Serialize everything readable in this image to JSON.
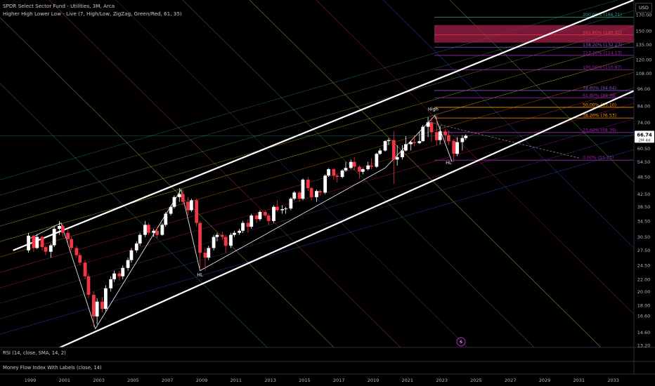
{
  "header": {
    "title": "SPDR Select Sector Fund - Utilities, 3M, Arca",
    "indicator": "Higher High Lower Low - Live (7, High/Low, ZigZag, Green/Red, 61, 35)",
    "currency": "USD"
  },
  "panes": {
    "rsi_label": "RSI (14, close, SMA, 14, 2)",
    "mfi_label": "Money Flow Index With Labels (close, 14)"
  },
  "colors": {
    "bull": "#ffffff",
    "bear": "#f23645",
    "channel": "#ffffff",
    "price_badge_bg": "#ffffff",
    "fib_highlight": "#a3224a"
  },
  "chart_data": {
    "type": "candlestick",
    "title": "SPDR Select Sector Fund - Utilities, 3M, Arca",
    "x_ticks": [
      "1999",
      "2001",
      "2003",
      "2005",
      "2007",
      "2009",
      "2011",
      "2013",
      "2015",
      "2017",
      "2019",
      "2021",
      "2023",
      "2025",
      "2027",
      "2029",
      "2031",
      "2033"
    ],
    "y_ticks": [
      "170.00",
      "150.00",
      "135.00",
      "120.00",
      "108.00",
      "96.00",
      "84.00",
      "74.00",
      "66.74",
      "60.50",
      "54.50",
      "48.50",
      "42.50",
      "38.50",
      "34.50",
      "30.50",
      "27.50",
      "24.50",
      "22.00",
      "20.00",
      "18.00",
      "16.60",
      "14.60",
      "13.20"
    ],
    "y_scale": "log",
    "ylim": [
      13.2,
      170
    ],
    "last_price": "66.74",
    "countdown": "2M 4d",
    "fib_levels": [
      {
        "label": "200.00% (166.71)",
        "value": 166.71,
        "color": "#26a69a"
      },
      {
        "label": "161.80% (145.42)",
        "value": 145.42,
        "color": "#f23645"
      },
      {
        "label": "138.20% (132.27)",
        "value": 132.27,
        "color": "#7e57c2"
      },
      {
        "label": "127.20% (124.13)",
        "value": 124.13,
        "color": "#9c27b0"
      },
      {
        "label": "100.00% (110.97)",
        "value": 110.97,
        "color": "#9c27b0"
      },
      {
        "label": "78.60% (94.64)",
        "value": 94.64,
        "color": "#7e57c2"
      },
      {
        "label": "61.80% (89.48)",
        "value": 89.48,
        "color": "#9c27b0"
      },
      {
        "label": "50.00% (83.10)",
        "value": 83.1,
        "color": "#ff9800"
      },
      {
        "label": "38.20% (76.53)",
        "value": 76.53,
        "color": "#ff9800"
      },
      {
        "label": "23.60% (68.39)",
        "value": 68.39,
        "color": "#9c27b0"
      },
      {
        "label": "0.00% (55.23)",
        "value": 55.23,
        "color": "#9c27b0"
      }
    ],
    "swing_labels": [
      {
        "text": "High",
        "x": 2022.5,
        "y": 81
      },
      {
        "text": "HL",
        "x": 2008.9,
        "y": 22.5
      },
      {
        "text": "HL",
        "x": 2023.4,
        "y": 53.5
      }
    ],
    "zigzag": [
      [
        1998.9,
        30
      ],
      [
        2000.8,
        34
      ],
      [
        2002.8,
        15
      ],
      [
        2007.8,
        44
      ],
      [
        2008.9,
        23.5
      ],
      [
        2019.7,
        52
      ],
      [
        2022.6,
        78
      ],
      [
        2023.6,
        54.5
      ]
    ],
    "channel_upper": [
      [
        1998.0,
        27.5
      ],
      [
        2036.0,
        210
      ]
    ],
    "channel_lower": [
      [
        2000.5,
        12.8
      ],
      [
        2036.0,
        105
      ]
    ],
    "candles": [
      {
        "t": 1998.9,
        "o": 27.5,
        "h": 31.5,
        "l": 27.0,
        "c": 30.8
      },
      {
        "t": 1999.2,
        "o": 30.8,
        "h": 31.0,
        "l": 27.2,
        "c": 28.0
      },
      {
        "t": 1999.4,
        "o": 28.0,
        "h": 31.2,
        "l": 27.8,
        "c": 30.5
      },
      {
        "t": 1999.7,
        "o": 30.5,
        "h": 30.8,
        "l": 27.5,
        "c": 28.2
      },
      {
        "t": 1999.9,
        "o": 28.2,
        "h": 28.6,
        "l": 26.5,
        "c": 27.2
      },
      {
        "t": 2000.2,
        "o": 27.2,
        "h": 29.0,
        "l": 26.0,
        "c": 28.6
      },
      {
        "t": 2000.4,
        "o": 28.6,
        "h": 33.0,
        "l": 28.2,
        "c": 32.5
      },
      {
        "t": 2000.7,
        "o": 32.5,
        "h": 34.5,
        "l": 31.0,
        "c": 33.2
      },
      {
        "t": 2000.9,
        "o": 33.2,
        "h": 33.8,
        "l": 30.5,
        "c": 31.5
      },
      {
        "t": 2001.2,
        "o": 31.5,
        "h": 32.5,
        "l": 29.0,
        "c": 30.0
      },
      {
        "t": 2001.4,
        "o": 30.0,
        "h": 30.5,
        "l": 27.5,
        "c": 28.0
      },
      {
        "t": 2001.7,
        "o": 28.0,
        "h": 28.5,
        "l": 26.0,
        "c": 26.5
      },
      {
        "t": 2001.9,
        "o": 26.5,
        "h": 27.0,
        "l": 24.5,
        "c": 25.0
      },
      {
        "t": 2002.2,
        "o": 25.0,
        "h": 25.5,
        "l": 22.0,
        "c": 22.5
      },
      {
        "t": 2002.4,
        "o": 22.5,
        "h": 23.0,
        "l": 19.0,
        "c": 19.5
      },
      {
        "t": 2002.7,
        "o": 19.5,
        "h": 20.0,
        "l": 15.2,
        "c": 16.5
      },
      {
        "t": 2002.9,
        "o": 16.5,
        "h": 19.0,
        "l": 15.5,
        "c": 18.5
      },
      {
        "t": 2003.2,
        "o": 18.5,
        "h": 19.2,
        "l": 17.0,
        "c": 17.5
      },
      {
        "t": 2003.4,
        "o": 17.5,
        "h": 21.0,
        "l": 17.2,
        "c": 20.5
      },
      {
        "t": 2003.7,
        "o": 20.5,
        "h": 22.5,
        "l": 20.0,
        "c": 22.0
      },
      {
        "t": 2003.9,
        "o": 22.0,
        "h": 23.5,
        "l": 21.5,
        "c": 23.0
      },
      {
        "t": 2004.2,
        "o": 23.0,
        "h": 23.5,
        "l": 21.8,
        "c": 22.5
      },
      {
        "t": 2004.4,
        "o": 22.5,
        "h": 24.5,
        "l": 22.0,
        "c": 24.0
      },
      {
        "t": 2004.7,
        "o": 24.0,
        "h": 26.0,
        "l": 23.5,
        "c": 25.5
      },
      {
        "t": 2004.9,
        "o": 25.5,
        "h": 28.0,
        "l": 25.0,
        "c": 27.5
      },
      {
        "t": 2005.2,
        "o": 27.5,
        "h": 29.5,
        "l": 27.0,
        "c": 29.0
      },
      {
        "t": 2005.4,
        "o": 29.0,
        "h": 31.5,
        "l": 28.5,
        "c": 31.0
      },
      {
        "t": 2005.7,
        "o": 31.0,
        "h": 34.5,
        "l": 30.5,
        "c": 33.5
      },
      {
        "t": 2005.9,
        "o": 33.5,
        "h": 34.0,
        "l": 31.0,
        "c": 31.5
      },
      {
        "t": 2006.2,
        "o": 31.5,
        "h": 32.5,
        "l": 30.5,
        "c": 32.0
      },
      {
        "t": 2006.4,
        "o": 32.0,
        "h": 32.8,
        "l": 30.2,
        "c": 31.0
      },
      {
        "t": 2006.7,
        "o": 31.0,
        "h": 34.0,
        "l": 30.8,
        "c": 33.5
      },
      {
        "t": 2006.9,
        "o": 33.5,
        "h": 37.0,
        "l": 33.0,
        "c": 36.5
      },
      {
        "t": 2007.2,
        "o": 36.5,
        "h": 39.0,
        "l": 36.0,
        "c": 38.5
      },
      {
        "t": 2007.4,
        "o": 38.5,
        "h": 42.0,
        "l": 38.0,
        "c": 41.5
      },
      {
        "t": 2007.7,
        "o": 41.5,
        "h": 44.5,
        "l": 40.0,
        "c": 42.5
      },
      {
        "t": 2007.9,
        "o": 42.5,
        "h": 44.0,
        "l": 39.0,
        "c": 40.0
      },
      {
        "t": 2008.2,
        "o": 40.0,
        "h": 41.5,
        "l": 36.0,
        "c": 37.5
      },
      {
        "t": 2008.4,
        "o": 37.5,
        "h": 41.0,
        "l": 37.0,
        "c": 40.5
      },
      {
        "t": 2008.7,
        "o": 40.5,
        "h": 41.0,
        "l": 33.0,
        "c": 34.0
      },
      {
        "t": 2008.9,
        "o": 34.0,
        "h": 34.5,
        "l": 24.0,
        "c": 27.0
      },
      {
        "t": 2009.2,
        "o": 27.0,
        "h": 28.0,
        "l": 23.5,
        "c": 26.0
      },
      {
        "t": 2009.4,
        "o": 26.0,
        "h": 28.5,
        "l": 25.5,
        "c": 28.0
      },
      {
        "t": 2009.7,
        "o": 28.0,
        "h": 31.0,
        "l": 27.5,
        "c": 30.5
      },
      {
        "t": 2009.9,
        "o": 30.5,
        "h": 31.5,
        "l": 29.5,
        "c": 31.0
      },
      {
        "t": 2010.2,
        "o": 31.0,
        "h": 31.8,
        "l": 29.8,
        "c": 30.5
      },
      {
        "t": 2010.4,
        "o": 30.5,
        "h": 31.0,
        "l": 27.0,
        "c": 28.5
      },
      {
        "t": 2010.7,
        "o": 28.5,
        "h": 31.5,
        "l": 28.0,
        "c": 31.0
      },
      {
        "t": 2010.9,
        "o": 31.0,
        "h": 32.0,
        "l": 30.5,
        "c": 31.5
      },
      {
        "t": 2011.2,
        "o": 31.5,
        "h": 32.5,
        "l": 31.0,
        "c": 32.0
      },
      {
        "t": 2011.4,
        "o": 32.0,
        "h": 34.5,
        "l": 31.5,
        "c": 34.0
      },
      {
        "t": 2011.7,
        "o": 34.0,
        "h": 35.0,
        "l": 31.5,
        "c": 33.0
      },
      {
        "t": 2011.9,
        "o": 33.0,
        "h": 36.5,
        "l": 32.5,
        "c": 36.0
      },
      {
        "t": 2012.2,
        "o": 36.0,
        "h": 36.5,
        "l": 34.0,
        "c": 35.0
      },
      {
        "t": 2012.4,
        "o": 35.0,
        "h": 37.5,
        "l": 34.5,
        "c": 37.0
      },
      {
        "t": 2012.7,
        "o": 37.0,
        "h": 37.5,
        "l": 35.5,
        "c": 36.0
      },
      {
        "t": 2012.9,
        "o": 36.0,
        "h": 36.5,
        "l": 33.5,
        "c": 34.5
      },
      {
        "t": 2013.2,
        "o": 34.5,
        "h": 39.0,
        "l": 34.0,
        "c": 38.5
      },
      {
        "t": 2013.4,
        "o": 38.5,
        "h": 40.5,
        "l": 37.0,
        "c": 37.5
      },
      {
        "t": 2013.7,
        "o": 37.5,
        "h": 39.0,
        "l": 36.5,
        "c": 37.8
      },
      {
        "t": 2013.9,
        "o": 37.8,
        "h": 38.5,
        "l": 36.5,
        "c": 38.0
      },
      {
        "t": 2014.2,
        "o": 38.0,
        "h": 41.5,
        "l": 37.5,
        "c": 41.0
      },
      {
        "t": 2014.4,
        "o": 41.0,
        "h": 43.5,
        "l": 40.5,
        "c": 43.0
      },
      {
        "t": 2014.7,
        "o": 43.0,
        "h": 43.5,
        "l": 40.0,
        "c": 41.0
      },
      {
        "t": 2014.9,
        "o": 41.0,
        "h": 48.0,
        "l": 40.5,
        "c": 47.5
      },
      {
        "t": 2015.2,
        "o": 47.5,
        "h": 48.5,
        "l": 43.5,
        "c": 44.5
      },
      {
        "t": 2015.4,
        "o": 44.5,
        "h": 45.0,
        "l": 40.5,
        "c": 41.5
      },
      {
        "t": 2015.7,
        "o": 41.5,
        "h": 44.0,
        "l": 40.0,
        "c": 43.5
      },
      {
        "t": 2015.9,
        "o": 43.5,
        "h": 44.0,
        "l": 42.0,
        "c": 43.0
      },
      {
        "t": 2016.2,
        "o": 43.0,
        "h": 49.5,
        "l": 42.5,
        "c": 49.0
      },
      {
        "t": 2016.4,
        "o": 49.0,
        "h": 52.0,
        "l": 48.5,
        "c": 51.5
      },
      {
        "t": 2016.7,
        "o": 51.5,
        "h": 52.0,
        "l": 47.5,
        "c": 49.0
      },
      {
        "t": 2016.9,
        "o": 49.0,
        "h": 49.5,
        "l": 46.5,
        "c": 48.5
      },
      {
        "t": 2017.2,
        "o": 48.5,
        "h": 51.5,
        "l": 48.0,
        "c": 51.0
      },
      {
        "t": 2017.4,
        "o": 51.0,
        "h": 54.5,
        "l": 50.5,
        "c": 52.0
      },
      {
        "t": 2017.7,
        "o": 52.0,
        "h": 55.5,
        "l": 51.5,
        "c": 54.5
      },
      {
        "t": 2017.9,
        "o": 54.5,
        "h": 56.5,
        "l": 51.0,
        "c": 52.5
      },
      {
        "t": 2018.2,
        "o": 52.5,
        "h": 53.0,
        "l": 48.0,
        "c": 50.5
      },
      {
        "t": 2018.4,
        "o": 50.5,
        "h": 52.0,
        "l": 49.5,
        "c": 51.5
      },
      {
        "t": 2018.7,
        "o": 51.5,
        "h": 54.5,
        "l": 51.0,
        "c": 53.0
      },
      {
        "t": 2018.9,
        "o": 53.0,
        "h": 56.0,
        "l": 51.5,
        "c": 52.5
      },
      {
        "t": 2019.2,
        "o": 52.5,
        "h": 58.5,
        "l": 52.0,
        "c": 58.0
      },
      {
        "t": 2019.4,
        "o": 58.0,
        "h": 60.5,
        "l": 57.5,
        "c": 59.5
      },
      {
        "t": 2019.7,
        "o": 59.5,
        "h": 64.5,
        "l": 59.0,
        "c": 64.0
      },
      {
        "t": 2019.9,
        "o": 64.0,
        "h": 65.5,
        "l": 62.0,
        "c": 64.5
      },
      {
        "t": 2020.2,
        "o": 64.5,
        "h": 69.0,
        "l": 46.0,
        "c": 55.5
      },
      {
        "t": 2020.4,
        "o": 55.5,
        "h": 62.0,
        "l": 53.0,
        "c": 56.5
      },
      {
        "t": 2020.7,
        "o": 56.5,
        "h": 62.0,
        "l": 55.5,
        "c": 59.5
      },
      {
        "t": 2020.9,
        "o": 59.5,
        "h": 66.5,
        "l": 59.0,
        "c": 62.5
      },
      {
        "t": 2021.2,
        "o": 62.5,
        "h": 64.0,
        "l": 59.5,
        "c": 63.5
      },
      {
        "t": 2021.4,
        "o": 63.5,
        "h": 67.0,
        "l": 61.5,
        "c": 63.0
      },
      {
        "t": 2021.7,
        "o": 63.0,
        "h": 68.5,
        "l": 62.5,
        "c": 64.0
      },
      {
        "t": 2021.9,
        "o": 64.0,
        "h": 72.5,
        "l": 63.5,
        "c": 71.5
      },
      {
        "t": 2022.2,
        "o": 71.5,
        "h": 77.0,
        "l": 66.0,
        "c": 74.0
      },
      {
        "t": 2022.4,
        "o": 74.0,
        "h": 76.5,
        "l": 63.5,
        "c": 68.5
      },
      {
        "t": 2022.7,
        "o": 68.5,
        "h": 78.0,
        "l": 62.0,
        "c": 64.5
      },
      {
        "t": 2022.9,
        "o": 64.5,
        "h": 72.0,
        "l": 62.5,
        "c": 69.0
      },
      {
        "t": 2023.2,
        "o": 69.0,
        "h": 70.0,
        "l": 63.5,
        "c": 67.0
      },
      {
        "t": 2023.4,
        "o": 67.0,
        "h": 69.5,
        "l": 62.0,
        "c": 64.0
      },
      {
        "t": 2023.7,
        "o": 64.0,
        "h": 65.0,
        "l": 54.5,
        "c": 58.0
      },
      {
        "t": 2023.9,
        "o": 58.0,
        "h": 66.0,
        "l": 57.0,
        "c": 63.5
      },
      {
        "t": 2024.2,
        "o": 63.5,
        "h": 67.0,
        "l": 59.5,
        "c": 65.5
      },
      {
        "t": 2024.4,
        "o": 65.5,
        "h": 67.5,
        "l": 64.5,
        "c": 66.74
      }
    ]
  }
}
